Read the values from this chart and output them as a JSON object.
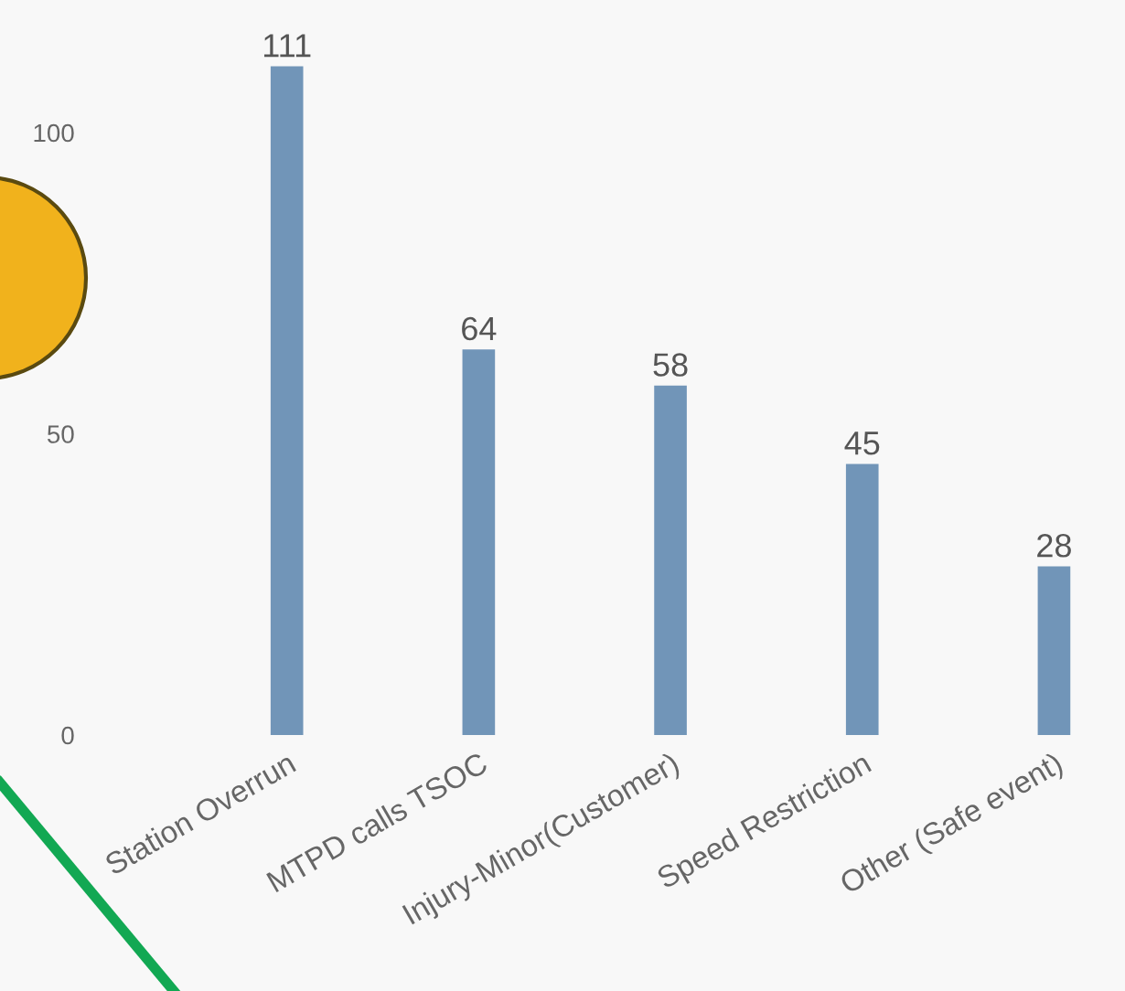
{
  "chart_data": {
    "type": "bar",
    "categories": [
      "Station Overrun",
      "MTPD calls TSOC",
      "Injury-Minor(Customer)",
      "Speed Restriction",
      "Other (Safe event)"
    ],
    "values": [
      111,
      64,
      58,
      45,
      28
    ],
    "color": "#7195b8",
    "ylim": [
      0,
      122
    ],
    "yticks": [
      0,
      50,
      100
    ],
    "grid": false,
    "legend": false,
    "data_labels": true
  }
}
